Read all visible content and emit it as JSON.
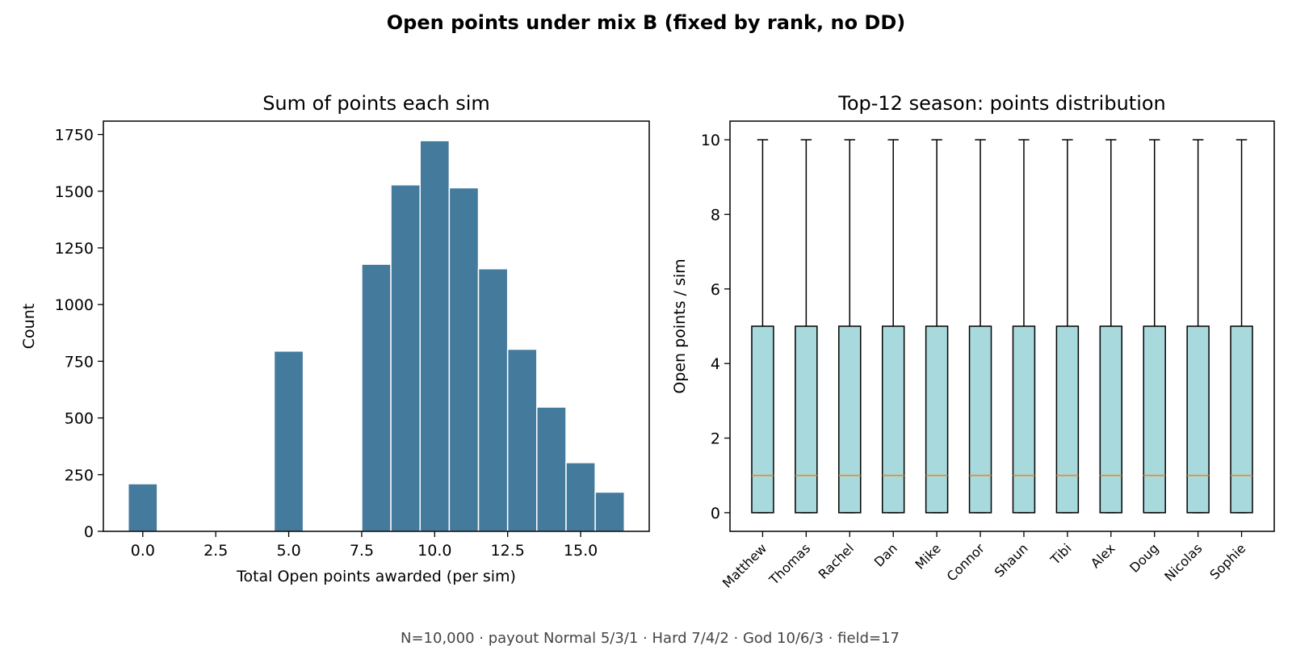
{
  "figure": {
    "suptitle": "Open points under mix B (fixed by rank, no DD)",
    "footnote": "N=10,000 · payout Normal 5/3/1 · Hard 7/4/2 · God 10/6/3 · field=17"
  },
  "chart_data": [
    {
      "type": "bar",
      "title": "Sum of points each sim",
      "xlabel": "Total Open points awarded (per sim)",
      "ylabel": "Count",
      "bar_color": "#447a9c",
      "bins": [
        {
          "from": -0.5,
          "to": 0.5,
          "count": 210
        },
        {
          "from": 4.5,
          "to": 5.5,
          "count": 795
        },
        {
          "from": 7.5,
          "to": 8.5,
          "count": 1178
        },
        {
          "from": 8.5,
          "to": 9.5,
          "count": 1528
        },
        {
          "from": 9.5,
          "to": 10.5,
          "count": 1723
        },
        {
          "from": 10.5,
          "to": 11.5,
          "count": 1515
        },
        {
          "from": 11.5,
          "to": 12.5,
          "count": 1158
        },
        {
          "from": 12.5,
          "to": 13.5,
          "count": 803
        },
        {
          "from": 13.5,
          "to": 14.5,
          "count": 548
        },
        {
          "from": 14.5,
          "to": 15.5,
          "count": 303
        },
        {
          "from": 15.5,
          "to": 16.5,
          "count": 173
        }
      ],
      "xlim": [
        -1.35,
        17.35
      ],
      "ylim": [
        0,
        1809
      ],
      "xticks": [
        0,
        2.5,
        5,
        7.5,
        10,
        12.5,
        15
      ],
      "xtick_labels": [
        "0.0",
        "2.5",
        "5.0",
        "7.5",
        "10.0",
        "12.5",
        "15.0"
      ],
      "yticks": [
        0,
        250,
        500,
        750,
        1000,
        1250,
        1500,
        1750
      ],
      "ytick_labels": [
        "0",
        "250",
        "500",
        "750",
        "1000",
        "1250",
        "1500",
        "1750"
      ],
      "grid": false
    },
    {
      "type": "box",
      "title": "Top-12 season: points distribution",
      "xlabel": "",
      "ylabel": "Open points / sim",
      "box_color": "#a8d9dc",
      "median_color": "#ff7f0e",
      "categories": [
        "Matthew",
        "Thomas",
        "Rachel",
        "Dan",
        "Mike",
        "Connor",
        "Shaun",
        "Tibi",
        "Alex",
        "Doug",
        "Nicolas",
        "Sophie"
      ],
      "boxes": [
        {
          "name": "Matthew",
          "whislo": 0,
          "q1": 0,
          "med": 1,
          "q3": 5,
          "whishi": 10
        },
        {
          "name": "Thomas",
          "whislo": 0,
          "q1": 0,
          "med": 1,
          "q3": 5,
          "whishi": 10
        },
        {
          "name": "Rachel",
          "whislo": 0,
          "q1": 0,
          "med": 1,
          "q3": 5,
          "whishi": 10
        },
        {
          "name": "Dan",
          "whislo": 0,
          "q1": 0,
          "med": 1,
          "q3": 5,
          "whishi": 10
        },
        {
          "name": "Mike",
          "whislo": 0,
          "q1": 0,
          "med": 1,
          "q3": 5,
          "whishi": 10
        },
        {
          "name": "Connor",
          "whislo": 0,
          "q1": 0,
          "med": 1,
          "q3": 5,
          "whishi": 10
        },
        {
          "name": "Shaun",
          "whislo": 0,
          "q1": 0,
          "med": 1,
          "q3": 5,
          "whishi": 10
        },
        {
          "name": "Tibi",
          "whislo": 0,
          "q1": 0,
          "med": 1,
          "q3": 5,
          "whishi": 10
        },
        {
          "name": "Alex",
          "whislo": 0,
          "q1": 0,
          "med": 1,
          "q3": 5,
          "whishi": 10
        },
        {
          "name": "Doug",
          "whislo": 0,
          "q1": 0,
          "med": 1,
          "q3": 5,
          "whishi": 10
        },
        {
          "name": "Nicolas",
          "whislo": 0,
          "q1": 0,
          "med": 1,
          "q3": 5,
          "whishi": 10
        },
        {
          "name": "Sophie",
          "whislo": 0,
          "q1": 0,
          "med": 1,
          "q3": 5,
          "whishi": 10
        }
      ],
      "ylim": [
        -0.5,
        10.5
      ],
      "yticks": [
        0,
        2,
        4,
        6,
        8,
        10
      ],
      "ytick_labels": [
        "0",
        "2",
        "4",
        "6",
        "8",
        "10"
      ],
      "grid": false
    }
  ]
}
